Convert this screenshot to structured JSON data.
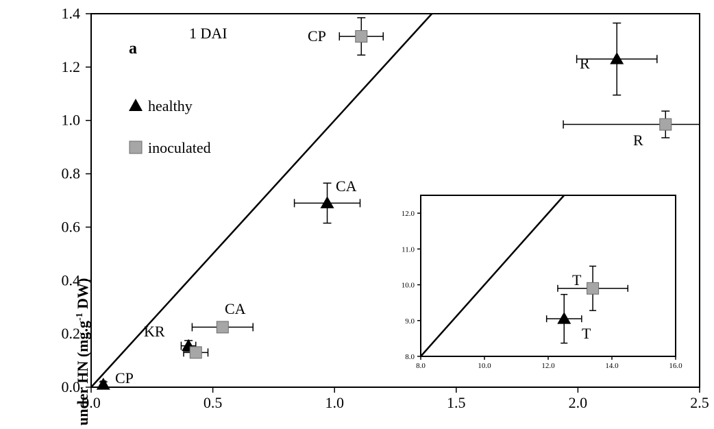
{
  "chart_data": [
    {
      "type": "scatter",
      "panel_label": "a",
      "annotation": "1 DAI",
      "ylabel_main": "under HN (mg.g",
      "ylabel_sup": "-1",
      "ylabel_tail": " DW)",
      "xlim": [
        0,
        2.5
      ],
      "ylim": [
        0,
        1.4
      ],
      "xticks": [
        "0.0",
        "0.5",
        "1.0",
        "1.5",
        "2.0",
        "2.5"
      ],
      "xtick_values": [
        0,
        0.5,
        1.0,
        1.5,
        2.0,
        2.5
      ],
      "yticks": [
        "0.0",
        "0.2",
        "0.4",
        "0.6",
        "0.8",
        "1.0",
        "1.2",
        "1.4"
      ],
      "ytick_values": [
        0,
        0.2,
        0.4,
        0.6,
        0.8,
        1.0,
        1.2,
        1.4
      ],
      "reference_line": [
        [
          0,
          0
        ],
        [
          1.4,
          1.4
        ]
      ],
      "legend": [
        {
          "name": "healthy",
          "marker": "triangle",
          "color": "#000000"
        },
        {
          "name": "inoculated",
          "marker": "square",
          "color": "#a6a6a6"
        }
      ],
      "series": [
        {
          "name": "healthy",
          "points": [
            {
              "label": "CP",
              "x": 0.05,
              "y": 0.01,
              "xerr": 0.01,
              "yerr": 0.01
            },
            {
              "label": "KR",
              "x": 0.4,
              "y": 0.155,
              "xerr": 0.03,
              "yerr": 0.02
            },
            {
              "label": "CA",
              "x": 0.97,
              "y": 0.69,
              "xerr": 0.135,
              "yerr": 0.075
            },
            {
              "label": "R",
              "x": 2.16,
              "y": 1.23,
              "xerr": 0.165,
              "yerr": 0.135
            }
          ]
        },
        {
          "name": "inoculated",
          "points": [
            {
              "label": "",
              "x": 0.43,
              "y": 0.13,
              "xerr": 0.05,
              "yerr": 0.02
            },
            {
              "label": "CA",
              "x": 0.54,
              "y": 0.225,
              "xerr": 0.125,
              "yerr": 0.01
            },
            {
              "label": "CP",
              "x": 1.11,
              "y": 1.315,
              "xerr": 0.09,
              "yerr": 0.07
            },
            {
              "label": "R",
              "x": 2.36,
              "y": 0.985,
              "xerr": 0.42,
              "yerr": 0.05
            }
          ]
        }
      ]
    },
    {
      "type": "scatter",
      "inset": true,
      "xlim": [
        8.0,
        16.0
      ],
      "ylim": [
        8.0,
        12.5
      ],
      "xticks": [
        "8.0",
        "10.0",
        "12.0",
        "14.0",
        "16.0"
      ],
      "xtick_values": [
        8,
        10,
        12,
        14,
        16
      ],
      "yticks": [
        "8.0",
        "9.0",
        "10.0",
        "11.0",
        "12.0"
      ],
      "ytick_values": [
        8,
        9,
        10,
        11,
        12
      ],
      "reference_line": [
        [
          8,
          8
        ],
        [
          12.5,
          12.5
        ]
      ],
      "series": [
        {
          "name": "healthy",
          "points": [
            {
              "label": "T",
              "x": 12.5,
              "y": 9.05,
              "xerr": 0.55,
              "yerr": 0.68
            }
          ]
        },
        {
          "name": "inoculated",
          "points": [
            {
              "label": "T",
              "x": 13.4,
              "y": 9.9,
              "xerr": 1.1,
              "yerr": 0.62
            }
          ]
        }
      ]
    }
  ]
}
